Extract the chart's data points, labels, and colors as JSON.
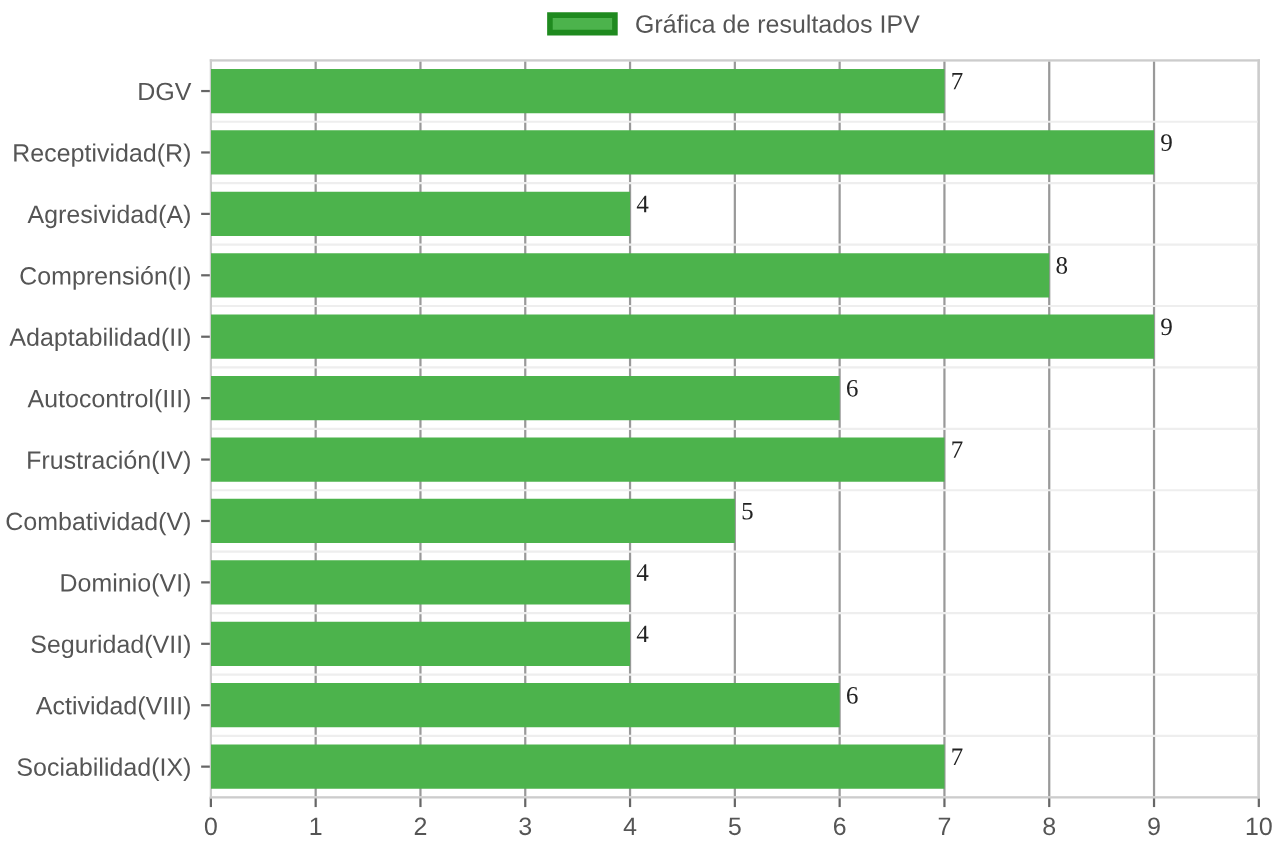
{
  "chart_data": {
    "type": "bar",
    "orientation": "horizontal",
    "categories": [
      "DGV",
      "Receptividad(R)",
      "Agresividad(A)",
      "Comprensión(I)",
      "Adaptabilidad(II)",
      "Autocontrol(III)",
      "Frustración(IV)",
      "Combatividad(V)",
      "Dominio(VI)",
      "Seguridad(VII)",
      "Actividad(VIII)",
      "Sociabilidad(IX)"
    ],
    "series": [
      {
        "name": "Gráfica de resultados IPV",
        "color": "#4cb34c",
        "values": [
          7,
          9,
          4,
          8,
          9,
          6,
          7,
          5,
          4,
          4,
          6,
          7
        ]
      }
    ],
    "xlim": [
      0,
      10
    ],
    "xticks": [
      0,
      1,
      2,
      3,
      4,
      5,
      6,
      7,
      8,
      9,
      10
    ],
    "grid": "x",
    "legend": "top",
    "data_labels": true
  }
}
